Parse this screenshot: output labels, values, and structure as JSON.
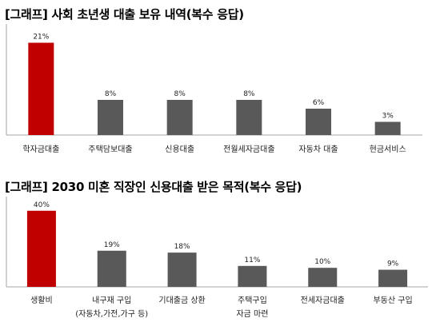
{
  "chart_data": [
    {
      "type": "bar",
      "title": "[그래프] 사회 초년생 대출 보유 내역(복수 응답)",
      "categories": [
        "학자금대출",
        "주택담보대출",
        "신용대출",
        "전월세자금대출",
        "자동차 대출",
        "현금서비스"
      ],
      "values": [
        21,
        8,
        8,
        8,
        6,
        3
      ],
      "value_labels": [
        "21%",
        "8%",
        "8%",
        "8%",
        "6%",
        "3%"
      ],
      "ylim": [
        0,
        22
      ],
      "grid": false,
      "colors": [
        "#c00000",
        "#595959",
        "#595959",
        "#595959",
        "#595959",
        "#595959"
      ]
    },
    {
      "type": "bar",
      "title": "[그래프] 2030 미혼 직장인 신용대출 받은 목적(복수 응답)",
      "categories": [
        [
          "생활비"
        ],
        [
          "내구재 구입",
          "(자동차,가전,가구 등)"
        ],
        [
          "기대출금 상환"
        ],
        [
          "주택구입",
          "자금 마련"
        ],
        [
          "전세자금대출"
        ],
        [
          "부동산 구입"
        ]
      ],
      "values": [
        40,
        19,
        18,
        11,
        10,
        9
      ],
      "value_labels": [
        "40%",
        "19%",
        "18%",
        "11%",
        "10%",
        "9%"
      ],
      "ylim": [
        0,
        42
      ],
      "grid": false,
      "colors": [
        "#c00000",
        "#595959",
        "#595959",
        "#595959",
        "#595959",
        "#595959"
      ]
    }
  ]
}
